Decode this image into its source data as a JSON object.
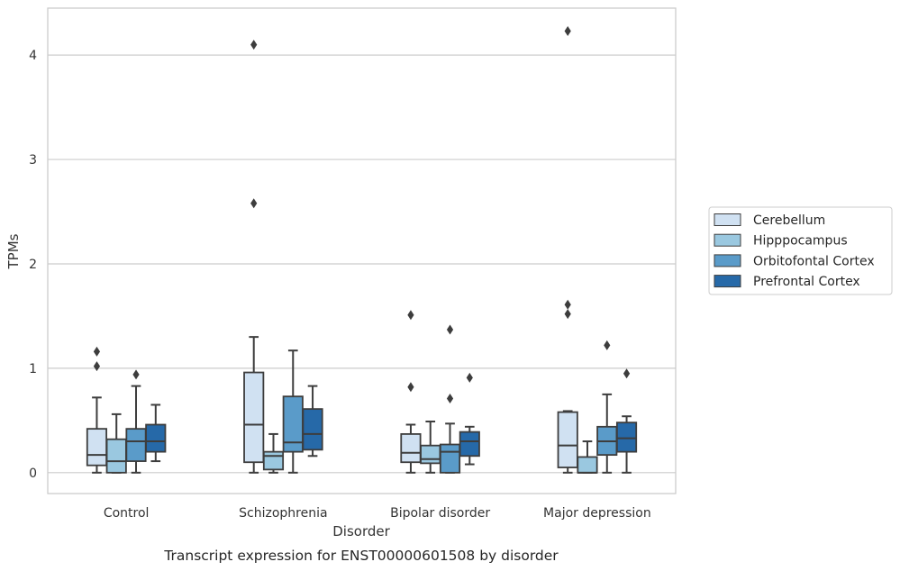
{
  "caption": "Transcript expression for ENST00000601508 by disorder",
  "chart_data": {
    "type": "box",
    "xlabel": "Disorder",
    "ylabel": "TPMs",
    "ylim": [
      -0.2,
      4.45
    ],
    "yticks": [
      0,
      1,
      2,
      3,
      4
    ],
    "grid": true,
    "legend_position": "right",
    "categories": [
      "Control",
      "Schizophrenia",
      "Bipolar disorder",
      "Major depression"
    ],
    "series": [
      {
        "name": "Cerebellum",
        "color": "#d0e1f2",
        "boxes": [
          {
            "whislo": 0.0,
            "q1": 0.07,
            "median": 0.17,
            "q3": 0.42,
            "whishi": 0.72,
            "fliers": [
              1.02,
              1.16
            ]
          },
          {
            "whislo": 0.0,
            "q1": 0.1,
            "median": 0.46,
            "q3": 0.96,
            "whishi": 1.3,
            "fliers": [
              2.58,
              4.1
            ]
          },
          {
            "whislo": 0.0,
            "q1": 0.1,
            "median": 0.19,
            "q3": 0.37,
            "whishi": 0.46,
            "fliers": [
              0.82,
              1.51
            ]
          },
          {
            "whislo": 0.0,
            "q1": 0.05,
            "median": 0.26,
            "q3": 0.58,
            "whishi": 0.59,
            "fliers": [
              1.52,
              1.61,
              4.23
            ]
          }
        ]
      },
      {
        "name": "Hipppocampus",
        "color": "#9ac8e0",
        "boxes": [
          {
            "whislo": 0.0,
            "q1": 0.0,
            "median": 0.11,
            "q3": 0.32,
            "whishi": 0.56,
            "fliers": []
          },
          {
            "whislo": 0.0,
            "q1": 0.03,
            "median": 0.16,
            "q3": 0.2,
            "whishi": 0.37,
            "fliers": []
          },
          {
            "whislo": 0.0,
            "q1": 0.09,
            "median": 0.13,
            "q3": 0.26,
            "whishi": 0.49,
            "fliers": []
          },
          {
            "whislo": 0.0,
            "q1": 0.0,
            "median": 0.0,
            "q3": 0.15,
            "whishi": 0.3,
            "fliers": []
          }
        ]
      },
      {
        "name": "Orbitofontal Cortex",
        "color": "#5a9bc9",
        "boxes": [
          {
            "whislo": 0.0,
            "q1": 0.11,
            "median": 0.3,
            "q3": 0.42,
            "whishi": 0.83,
            "fliers": [
              0.94
            ]
          },
          {
            "whislo": 0.0,
            "q1": 0.2,
            "median": 0.29,
            "q3": 0.73,
            "whishi": 1.17,
            "fliers": []
          },
          {
            "whislo": 0.0,
            "q1": 0.0,
            "median": 0.2,
            "q3": 0.27,
            "whishi": 0.47,
            "fliers": [
              0.71,
              1.37
            ]
          },
          {
            "whislo": 0.0,
            "q1": 0.17,
            "median": 0.3,
            "q3": 0.44,
            "whishi": 0.75,
            "fliers": [
              1.22
            ]
          }
        ]
      },
      {
        "name": "Prefrontal Cortex",
        "color": "#2669a8",
        "boxes": [
          {
            "whislo": 0.11,
            "q1": 0.2,
            "median": 0.3,
            "q3": 0.46,
            "whishi": 0.65,
            "fliers": []
          },
          {
            "whislo": 0.16,
            "q1": 0.22,
            "median": 0.37,
            "q3": 0.61,
            "whishi": 0.83,
            "fliers": []
          },
          {
            "whislo": 0.08,
            "q1": 0.16,
            "median": 0.3,
            "q3": 0.39,
            "whishi": 0.44,
            "fliers": [
              0.91
            ]
          },
          {
            "whislo": 0.0,
            "q1": 0.2,
            "median": 0.33,
            "q3": 0.48,
            "whishi": 0.54,
            "fliers": [
              0.95
            ]
          }
        ]
      }
    ]
  }
}
